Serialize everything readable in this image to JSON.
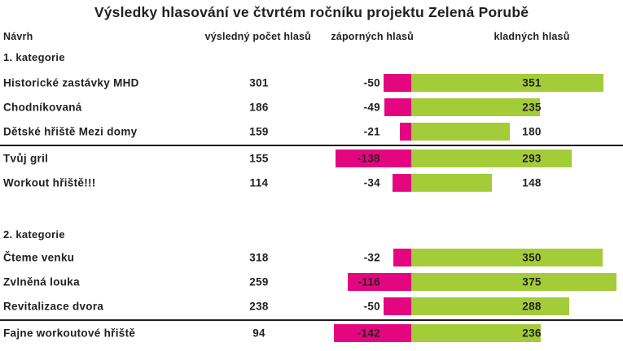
{
  "title": "Výsledky hlasování ve čtvrtém ročníku projektu Zelená Porubě",
  "chart_data": {
    "type": "bar",
    "orientation": "horizontal-diverging",
    "title": "Výsledky hlasování ve čtvrtém ročníku projektu Zelená Porubě",
    "columns": [
      "Návrh",
      "výsledný počet hlasů",
      "záporných hlasů",
      "kladných hlasů"
    ],
    "groups": [
      {
        "label": "1. kategorie",
        "rows": [
          {
            "name": "Historické zastávky MHD",
            "net": 301,
            "negative": -50,
            "positive": 351
          },
          {
            "name": "Chodníkovaná",
            "net": 186,
            "negative": -49,
            "positive": 235
          },
          {
            "name": "Dětské hřiště Mezi domy",
            "net": 159,
            "negative": -21,
            "positive": 180,
            "divider_after": true
          },
          {
            "name": "Tvůj gril",
            "net": 155,
            "negative": -138,
            "positive": 293
          },
          {
            "name": "Workout hřiště!!!",
            "net": 114,
            "negative": -34,
            "positive": 148
          }
        ]
      },
      {
        "label": "2. kategorie",
        "rows": [
          {
            "name": "Čteme venku",
            "net": 318,
            "negative": -32,
            "positive": 350
          },
          {
            "name": "Zvlněná louka",
            "net": 259,
            "negative": -116,
            "positive": 375
          },
          {
            "name": "Revitalizace dvora",
            "net": 238,
            "negative": -50,
            "positive": 288,
            "divider_after": true
          },
          {
            "name": "Fajne workoutové hřiště",
            "net": 94,
            "negative": -142,
            "positive": 236
          }
        ]
      }
    ],
    "colors": {
      "negative_bar": "#E4067F",
      "positive_bar": "#A4CC39",
      "text": "#232021"
    },
    "legend": null,
    "grid": false
  }
}
